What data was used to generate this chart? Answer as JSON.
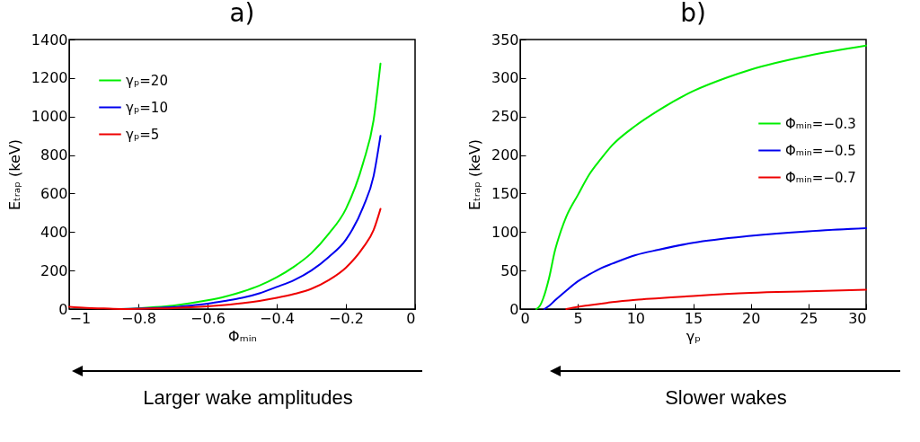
{
  "chart_data": [
    {
      "type": "line",
      "title": "a)",
      "xlabel": "Φₘᵢₙ",
      "ylabel": "Eₜᵣₐₚ (keV)",
      "xlim": [
        -1,
        0
      ],
      "xticks": [
        -1,
        -0.8,
        -0.6,
        -0.4,
        -0.2,
        0
      ],
      "ylim": [
        0,
        1400
      ],
      "yticks": [
        0,
        200,
        400,
        600,
        800,
        1000,
        1200,
        1400
      ],
      "grid": false,
      "legend": "top left",
      "marker": "none",
      "line_style": "solid",
      "annotations": [
        "Larger wake amplitudes"
      ],
      "x": [
        -1,
        -0.95,
        -0.9,
        -0.85,
        -0.8,
        -0.75,
        -0.7,
        -0.65,
        -0.6,
        -0.55,
        -0.5,
        -0.45,
        -0.4,
        -0.35,
        -0.3,
        -0.25,
        -0.2,
        -0.15,
        -0.12,
        -0.1
      ],
      "series": [
        {
          "name": "γₚ=20",
          "color": "#00ee00",
          "values": [
            null,
            null,
            null,
            0,
            4,
            10,
            18,
            30,
            45,
            64,
            90,
            122,
            165,
            220,
            290,
            390,
            520,
            760,
            980,
            1275
          ]
        },
        {
          "name": "γₚ=10",
          "color": "#0000ee",
          "values": [
            null,
            null,
            null,
            0,
            2,
            6,
            10,
            18,
            28,
            42,
            58,
            82,
            115,
            150,
            200,
            270,
            360,
            530,
            690,
            900
          ]
        },
        {
          "name": "γₚ=5",
          "color": "#ee0000",
          "values": [
            12,
            6,
            3,
            0,
            1,
            3,
            5,
            9,
            14,
            21,
            30,
            42,
            58,
            78,
            105,
            150,
            215,
            320,
            410,
            520
          ]
        }
      ]
    },
    {
      "type": "line",
      "title": "b)",
      "xlabel": "γₚ",
      "ylabel": "Eₜᵣₐₚ (keV)",
      "xlim": [
        0,
        30
      ],
      "xticks": [
        0,
        5,
        10,
        15,
        20,
        25,
        30
      ],
      "ylim": [
        0,
        350
      ],
      "yticks": [
        0,
        50,
        100,
        150,
        200,
        250,
        300,
        350
      ],
      "grid": false,
      "legend": "right",
      "marker": "none",
      "line_style": "solid",
      "annotations": [
        "Slower wakes"
      ],
      "series": [
        {
          "name": "Φₘᵢₙ=−0.3",
          "color": "#00ee00",
          "x": [
            1.4,
            1.7,
            2,
            2.5,
            3,
            3.5,
            4,
            5,
            6,
            7,
            8,
            10,
            12,
            15,
            18,
            20,
            25,
            30
          ],
          "values": [
            0,
            4,
            14,
            40,
            75,
            100,
            120,
            148,
            175,
            195,
            213,
            238,
            258,
            283,
            301,
            311,
            329,
            342
          ]
        },
        {
          "name": "Φₘᵢₙ=−0.5",
          "color": "#0000ee",
          "x": [
            2.1,
            2.5,
            3,
            4,
            5,
            6,
            7,
            8,
            10,
            12,
            15,
            20,
            25,
            30
          ],
          "values": [
            0,
            4,
            11,
            24,
            36,
            45,
            53,
            59,
            70,
            77,
            86,
            95,
            101,
            105
          ]
        },
        {
          "name": "Φₘᵢₙ=−0.7",
          "color": "#ee0000",
          "x": [
            4,
            5,
            6,
            7.5,
            8,
            10,
            12,
            15,
            20,
            25,
            30
          ],
          "values": [
            0,
            3,
            5,
            8,
            9,
            12,
            14,
            17,
            21,
            23,
            25
          ]
        }
      ]
    }
  ]
}
